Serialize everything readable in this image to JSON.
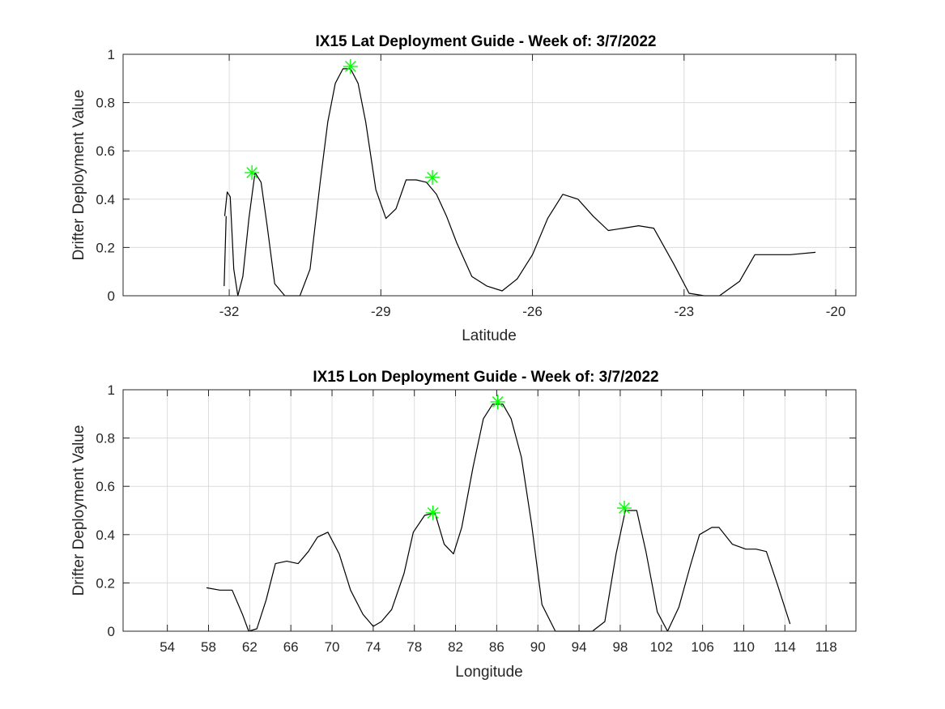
{
  "colors": {
    "line": "#000000",
    "marker": "#00ff00",
    "grid": "#dcdcdc",
    "axis": "#262626"
  },
  "chart_data": [
    {
      "type": "line",
      "title": "IX15 Lat Deployment Guide - Week of: 3/7/2022",
      "xlabel": "Latitude",
      "ylabel": "Drifter Deployment Value",
      "xlim": [
        -34.1,
        -19.6
      ],
      "ylim": [
        0,
        1
      ],
      "xticks": [
        -32,
        -29,
        -26,
        -23,
        -20
      ],
      "xtick_labels": [
        "-32",
        "-29",
        "-26",
        "-23",
        "-20"
      ],
      "yticks": [
        0,
        0.2,
        0.4,
        0.6,
        0.8,
        1
      ],
      "ytick_labels": [
        "0",
        "0.2",
        "0.4",
        "0.6",
        "0.8",
        "1"
      ],
      "grid": true,
      "series": [
        {
          "x": [
            -32.09,
            -32.04,
            -31.98,
            -31.91,
            -31.83,
            -31.73,
            -31.61,
            -31.49,
            -31.37,
            -31.25,
            -31.1,
            -30.9,
            -30.6,
            -30.4,
            -30.2,
            -30.05,
            -29.9,
            -29.75,
            -29.6,
            -29.45,
            -29.3,
            -29.1,
            -28.9,
            -28.7,
            -28.5,
            -28.3,
            -28.1,
            -27.9,
            -27.7,
            -27.5,
            -27.2,
            -26.9,
            -26.6,
            -26.3,
            -26.0,
            -25.7,
            -25.4,
            -25.1,
            -24.8,
            -24.5,
            -24.2,
            -23.9,
            -23.6,
            -23.2,
            -22.9,
            -22.6,
            -22.3,
            -21.9,
            -21.6,
            -21.3,
            -20.9,
            -20.4
          ],
          "y": [
            0.33,
            0.43,
            0.41,
            0.11,
            0.0,
            0.08,
            0.32,
            0.51,
            0.47,
            0.29,
            0.05,
            0.0,
            0.0,
            0.11,
            0.47,
            0.72,
            0.88,
            0.94,
            0.94,
            0.88,
            0.72,
            0.44,
            0.32,
            0.36,
            0.48,
            0.48,
            0.47,
            0.42,
            0.33,
            0.22,
            0.08,
            0.04,
            0.02,
            0.07,
            0.17,
            0.32,
            0.42,
            0.4,
            0.33,
            0.27,
            0.28,
            0.29,
            0.28,
            0.13,
            0.01,
            0.0,
            0.0,
            0.06,
            0.17,
            0.17,
            0.17,
            0.18
          ]
        }
      ],
      "extra_segments": [
        {
          "x": [
            -32.1,
            -32.06
          ],
          "y": [
            0.04,
            0.33
          ]
        }
      ],
      "peaks": [
        {
          "x": -31.55,
          "y": 0.51
        },
        {
          "x": -29.6,
          "y": 0.95
        },
        {
          "x": -27.98,
          "y": 0.49
        }
      ]
    },
    {
      "type": "line",
      "title": "IX15 Lon Deployment Guide - Week of: 3/7/2022",
      "xlabel": "Longitude",
      "ylabel": "Drifter Deployment Value",
      "xlim": [
        49.7,
        120.9
      ],
      "ylim": [
        0,
        1
      ],
      "xticks": [
        54,
        58,
        62,
        66,
        70,
        74,
        78,
        82,
        86,
        90,
        94,
        98,
        102,
        106,
        110,
        114,
        118
      ],
      "xtick_labels": [
        "54",
        "58",
        "62",
        "66",
        "70",
        "74",
        "78",
        "82",
        "86",
        "90",
        "94",
        "98",
        "102",
        "106",
        "110",
        "114",
        "118"
      ],
      "yticks": [
        0,
        0.2,
        0.4,
        0.6,
        0.8,
        1
      ],
      "ytick_labels": [
        "0",
        "0.2",
        "0.4",
        "0.6",
        "0.8",
        "1"
      ],
      "grid": true,
      "series": [
        {
          "x": [
            57.8,
            59.1,
            60.3,
            61.3,
            61.9,
            62.7,
            63.6,
            64.5,
            65.6,
            66.7,
            67.7,
            68.6,
            69.6,
            70.7,
            71.8,
            73.0,
            74.0,
            74.8,
            75.8,
            77.0,
            77.9,
            79.0,
            80.0,
            80.9,
            81.8,
            82.6,
            83.7,
            84.7,
            85.6,
            86.6,
            87.4,
            88.4,
            89.4,
            90.4,
            91.7,
            92.7,
            95.3,
            96.5,
            97.6,
            98.5,
            99.6,
            100.5,
            101.6,
            102.6,
            103.7,
            104.8,
            105.7,
            106.9,
            107.6,
            108.9,
            110.2,
            111.2,
            112.2,
            113.3,
            114.5
          ],
          "y": [
            0.18,
            0.17,
            0.17,
            0.07,
            0.0,
            0.01,
            0.13,
            0.28,
            0.29,
            0.28,
            0.33,
            0.39,
            0.41,
            0.32,
            0.17,
            0.07,
            0.02,
            0.04,
            0.09,
            0.24,
            0.41,
            0.48,
            0.49,
            0.36,
            0.32,
            0.43,
            0.68,
            0.88,
            0.94,
            0.94,
            0.88,
            0.72,
            0.44,
            0.11,
            0.0,
            0.0,
            0.0,
            0.04,
            0.32,
            0.5,
            0.5,
            0.33,
            0.08,
            0.0,
            0.1,
            0.27,
            0.4,
            0.43,
            0.43,
            0.36,
            0.34,
            0.34,
            0.33,
            0.19,
            0.03
          ]
        }
      ],
      "extra_segments": [],
      "peaks": [
        {
          "x": 79.8,
          "y": 0.49
        },
        {
          "x": 86.1,
          "y": 0.95
        },
        {
          "x": 98.4,
          "y": 0.51
        }
      ]
    }
  ]
}
